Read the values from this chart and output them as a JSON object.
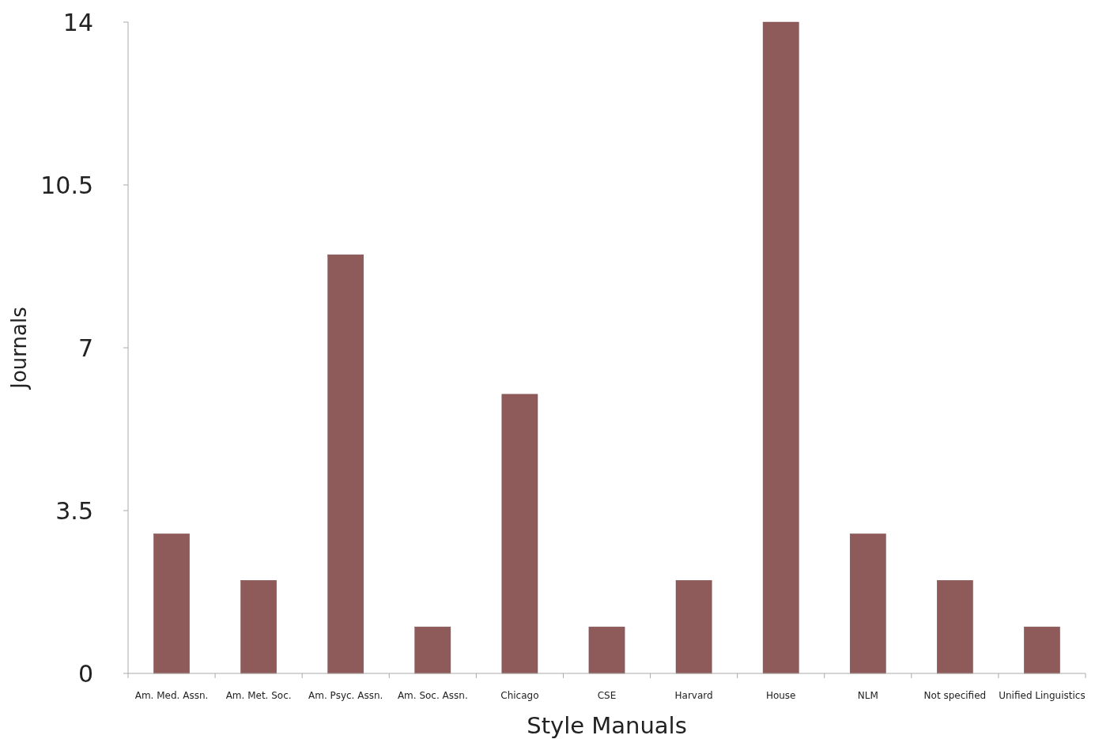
{
  "chart_data": {
    "type": "bar",
    "xlabel": "Style Manuals",
    "ylabel": "Journals",
    "categories": [
      "Am. Med. Assn.",
      "Am. Met. Soc.",
      "Am. Psyc. Assn.",
      "Am. Soc. Assn.",
      "Chicago",
      "CSE",
      "Harvard",
      "House",
      "NLM",
      "Not specified",
      "Unified Linguistics"
    ],
    "values": [
      3,
      2,
      9,
      1,
      6,
      1,
      2,
      14,
      3,
      2,
      1
    ],
    "color": "#8e5a5a",
    "ylim": [
      0,
      14
    ],
    "yticks": [
      0,
      3.5,
      7,
      10.5,
      14
    ],
    "grid": false
  }
}
